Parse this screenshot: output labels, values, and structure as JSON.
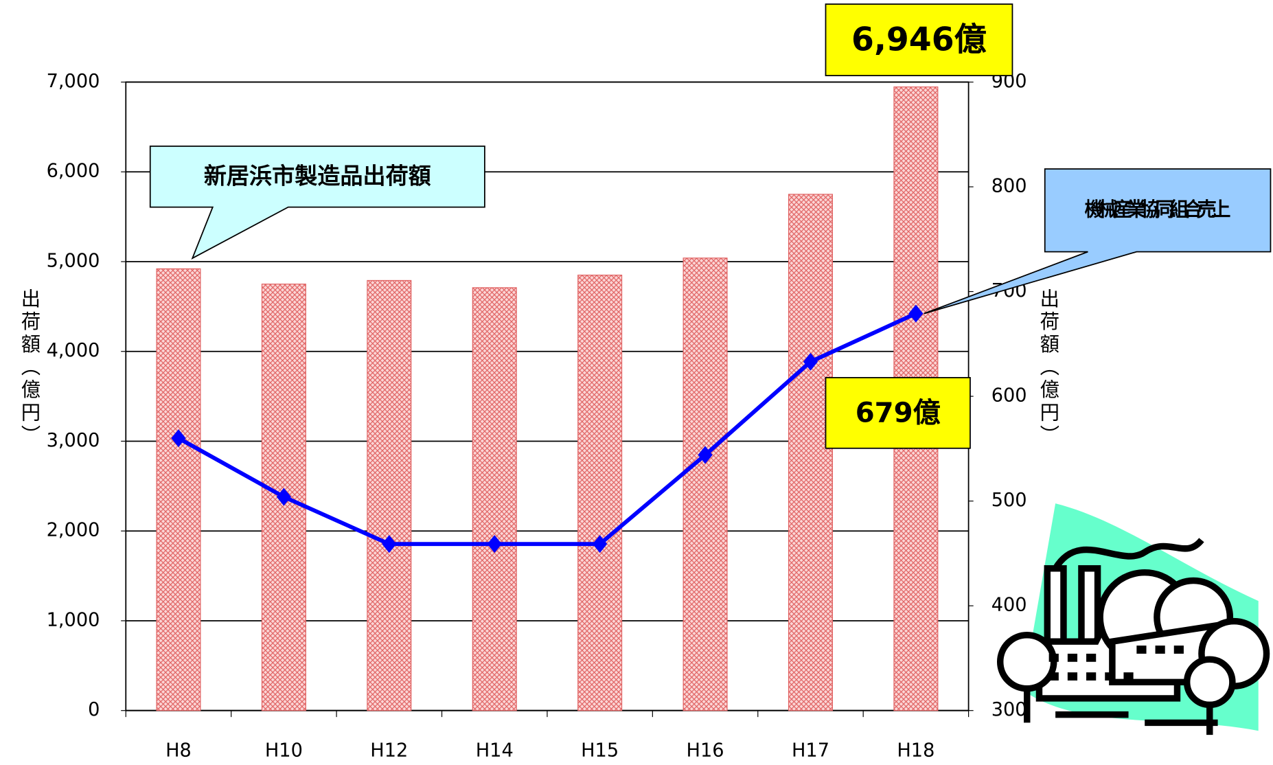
{
  "chart_data": {
    "type": "bar",
    "categories": [
      "H8",
      "H10",
      "H12",
      "H14",
      "H15",
      "H16",
      "H17",
      "H18"
    ],
    "series": [
      {
        "name": "新居浜市製造品出荷額",
        "type": "bar",
        "color": "#e06060",
        "values": [
          4920,
          4750,
          4790,
          4710,
          4850,
          5040,
          5750,
          6946
        ],
        "value_labels": [
          null,
          null,
          null,
          null,
          null,
          null,
          null,
          "6,946億"
        ]
      },
      {
        "name": "機械産業協同組合売上",
        "type": "line",
        "axis": "y2",
        "color": "#0000ff",
        "values": [
          560,
          504,
          459,
          459,
          459,
          544,
          633,
          679
        ],
        "value_labels": [
          null,
          null,
          null,
          null,
          null,
          null,
          null,
          "679億"
        ]
      }
    ],
    "y_label": "出荷額（億円）",
    "y2_label": "出荷額（億円）",
    "ylim": [
      0,
      7000
    ],
    "yticks": [
      0,
      {
        "value": 1000,
        "label": "1,000"
      },
      {
        "value": 2000,
        "label": "2,000"
      },
      {
        "value": 3000,
        "label": "3,000"
      },
      {
        "value": 4000,
        "label": "4,000"
      },
      {
        "value": 5000,
        "label": "5,000"
      },
      {
        "value": 6000,
        "label": "6,000"
      },
      {
        "value": 7000,
        "label": "7,000"
      }
    ],
    "y2lim": [
      300,
      900
    ],
    "y2ticks": [
      300,
      400,
      500,
      600,
      700,
      800,
      900
    ],
    "grid": true
  }
}
